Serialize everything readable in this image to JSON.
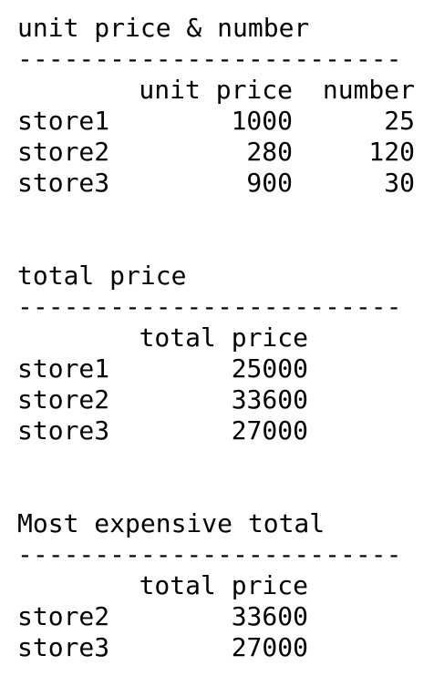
{
  "sections": [
    {
      "title": "unit price & number",
      "rule": "--------------------------",
      "headers": [
        "unit price",
        "number"
      ],
      "rows": [
        {
          "label": "store1",
          "values": [
            "1000",
            "25"
          ]
        },
        {
          "label": "store2",
          "values": [
            "280",
            "120"
          ]
        },
        {
          "label": "store3",
          "values": [
            "900",
            "30"
          ]
        }
      ]
    },
    {
      "title": "total price",
      "rule": "--------------------------",
      "headers": [
        "total price"
      ],
      "rows": [
        {
          "label": "store1",
          "values": [
            "25000"
          ]
        },
        {
          "label": "store2",
          "values": [
            "33600"
          ]
        },
        {
          "label": "store3",
          "values": [
            "27000"
          ]
        }
      ]
    },
    {
      "title": "Most expensive total",
      "rule": "--------------------------",
      "headers": [
        "total price"
      ],
      "rows": [
        {
          "label": "store2",
          "values": [
            "33600"
          ]
        },
        {
          "label": "store3",
          "values": [
            "27000"
          ]
        }
      ]
    }
  ]
}
